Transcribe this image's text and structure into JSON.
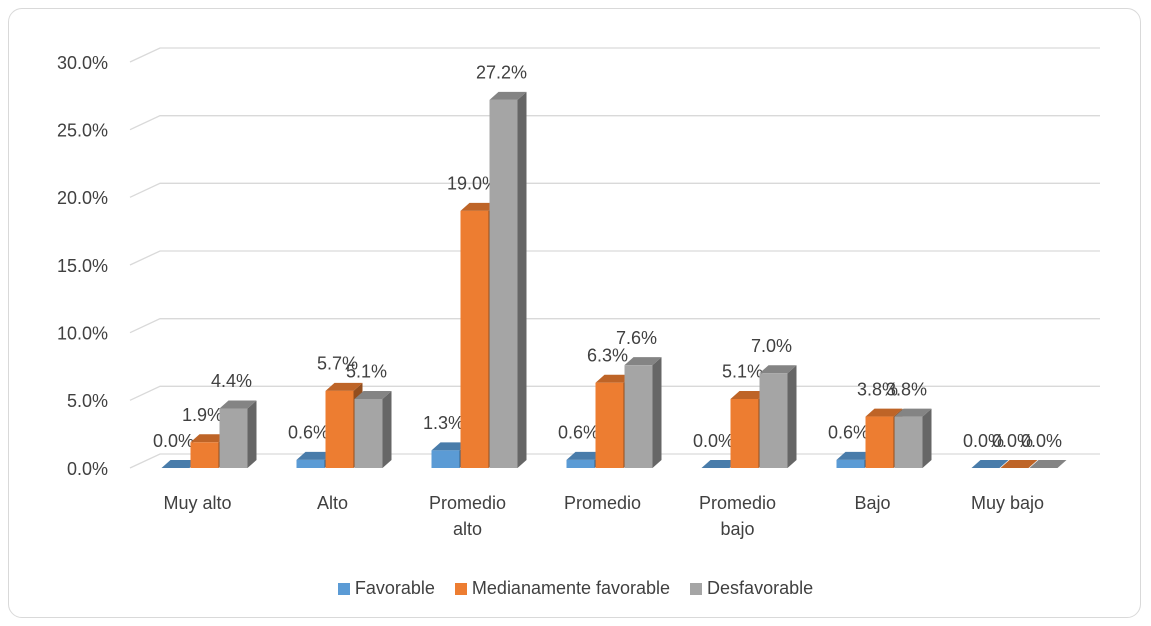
{
  "chart_data": {
    "type": "bar3d",
    "categories": [
      "Muy alto",
      "Alto",
      "Promedio alto",
      "Promedio",
      "Promedio bajo",
      "Bajo",
      "Muy bajo"
    ],
    "series": [
      {
        "name": "Favorable",
        "color": "#5b9bd5",
        "values": [
          0.0,
          0.6,
          1.3,
          0.6,
          0.0,
          0.6,
          0.0
        ],
        "value_labels": [
          "0.0%",
          "0.6%",
          "1.3%",
          "0.6%",
          "0.0%",
          "0.6%",
          "0.0%"
        ]
      },
      {
        "name": "Medianamente favorable",
        "color": "#ed7d31",
        "values": [
          1.9,
          5.7,
          19.0,
          6.3,
          5.1,
          3.8,
          0.0
        ],
        "value_labels": [
          "1.9%",
          "5.7%",
          "19.0%",
          "6.3%",
          "5.1%",
          "3.8%",
          "0.0%"
        ]
      },
      {
        "name": "Desfavorable",
        "color": "#a5a5a5",
        "values": [
          4.4,
          5.1,
          27.2,
          7.6,
          7.0,
          3.8,
          0.0
        ],
        "value_labels": [
          "4.4%",
          "5.1%",
          "27.2%",
          "7.6%",
          "7.0%",
          "3.8%",
          "0.0%"
        ]
      }
    ],
    "ylim": [
      0,
      30
    ],
    "yticks": [
      {
        "value": 0,
        "label": "0.0%"
      },
      {
        "value": 5,
        "label": "5.0%"
      },
      {
        "value": 10,
        "label": "10.0%"
      },
      {
        "value": 15,
        "label": "15.0%"
      },
      {
        "value": 20,
        "label": "20.0%"
      },
      {
        "value": 25,
        "label": "25.0%"
      },
      {
        "value": 30,
        "label": "30.0%"
      }
    ],
    "grid": true,
    "legend": "bottom"
  }
}
